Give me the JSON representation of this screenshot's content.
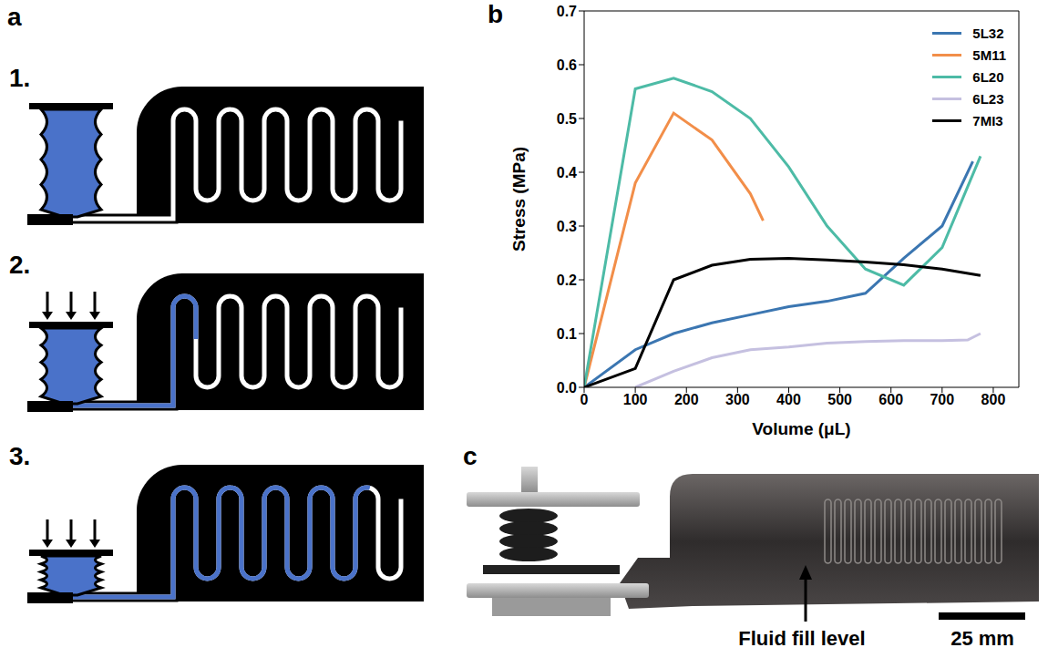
{
  "panel_a": {
    "letter": "a",
    "steps": [
      "1.",
      "2.",
      "3."
    ]
  },
  "chart_data": {
    "letter": "b",
    "type": "line",
    "xlabel": "Volume (μL)",
    "ylabel": "Stress (MPa)",
    "xlim": [
      0,
      850
    ],
    "xticks": [
      0,
      100,
      200,
      300,
      400,
      500,
      600,
      700,
      800
    ],
    "ylim": [
      0,
      0.7
    ],
    "yticks": [
      {
        "value": 0,
        "label": "0.0"
      },
      0.1,
      0.2,
      0.3,
      0.4,
      0.5,
      0.6,
      0.7
    ],
    "legend": "upper right",
    "series": [
      {
        "name": "5L32",
        "color": "#3b76b1",
        "x": [
          0,
          100,
          175,
          250,
          325,
          400,
          475,
          550,
          625,
          700,
          760
        ],
        "values": [
          0,
          0.07,
          0.1,
          0.12,
          0.135,
          0.15,
          0.16,
          0.175,
          0.24,
          0.3,
          0.42
        ]
      },
      {
        "name": "5M11",
        "color": "#f28e49",
        "x": [
          0,
          100,
          175,
          250,
          325,
          350
        ],
        "values": [
          0,
          0.38,
          0.51,
          0.46,
          0.36,
          0.31
        ]
      },
      {
        "name": "6L20",
        "color": "#4dbba6",
        "x": [
          0,
          100,
          175,
          250,
          325,
          400,
          475,
          550,
          625,
          700,
          775
        ],
        "values": [
          0,
          0.555,
          0.575,
          0.55,
          0.5,
          0.41,
          0.3,
          0.22,
          0.19,
          0.26,
          0.43
        ]
      },
      {
        "name": "6L23",
        "color": "#c5c0e0",
        "x": [
          100,
          175,
          250,
          325,
          400,
          475,
          550,
          625,
          700,
          750,
          775
        ],
        "values": [
          0,
          0.03,
          0.055,
          0.07,
          0.075,
          0.082,
          0.085,
          0.087,
          0.087,
          0.088,
          0.1
        ]
      },
      {
        "name": "7MI3",
        "color": "#000000",
        "x": [
          0,
          100,
          175,
          250,
          325,
          400,
          475,
          550,
          625,
          700,
          775
        ],
        "values": [
          0,
          0.035,
          0.2,
          0.227,
          0.238,
          0.24,
          0.237,
          0.233,
          0.228,
          0.22,
          0.208
        ]
      }
    ]
  },
  "panel_c": {
    "letter": "c",
    "annotation": "Fluid fill level",
    "scale_bar": "25 mm"
  }
}
